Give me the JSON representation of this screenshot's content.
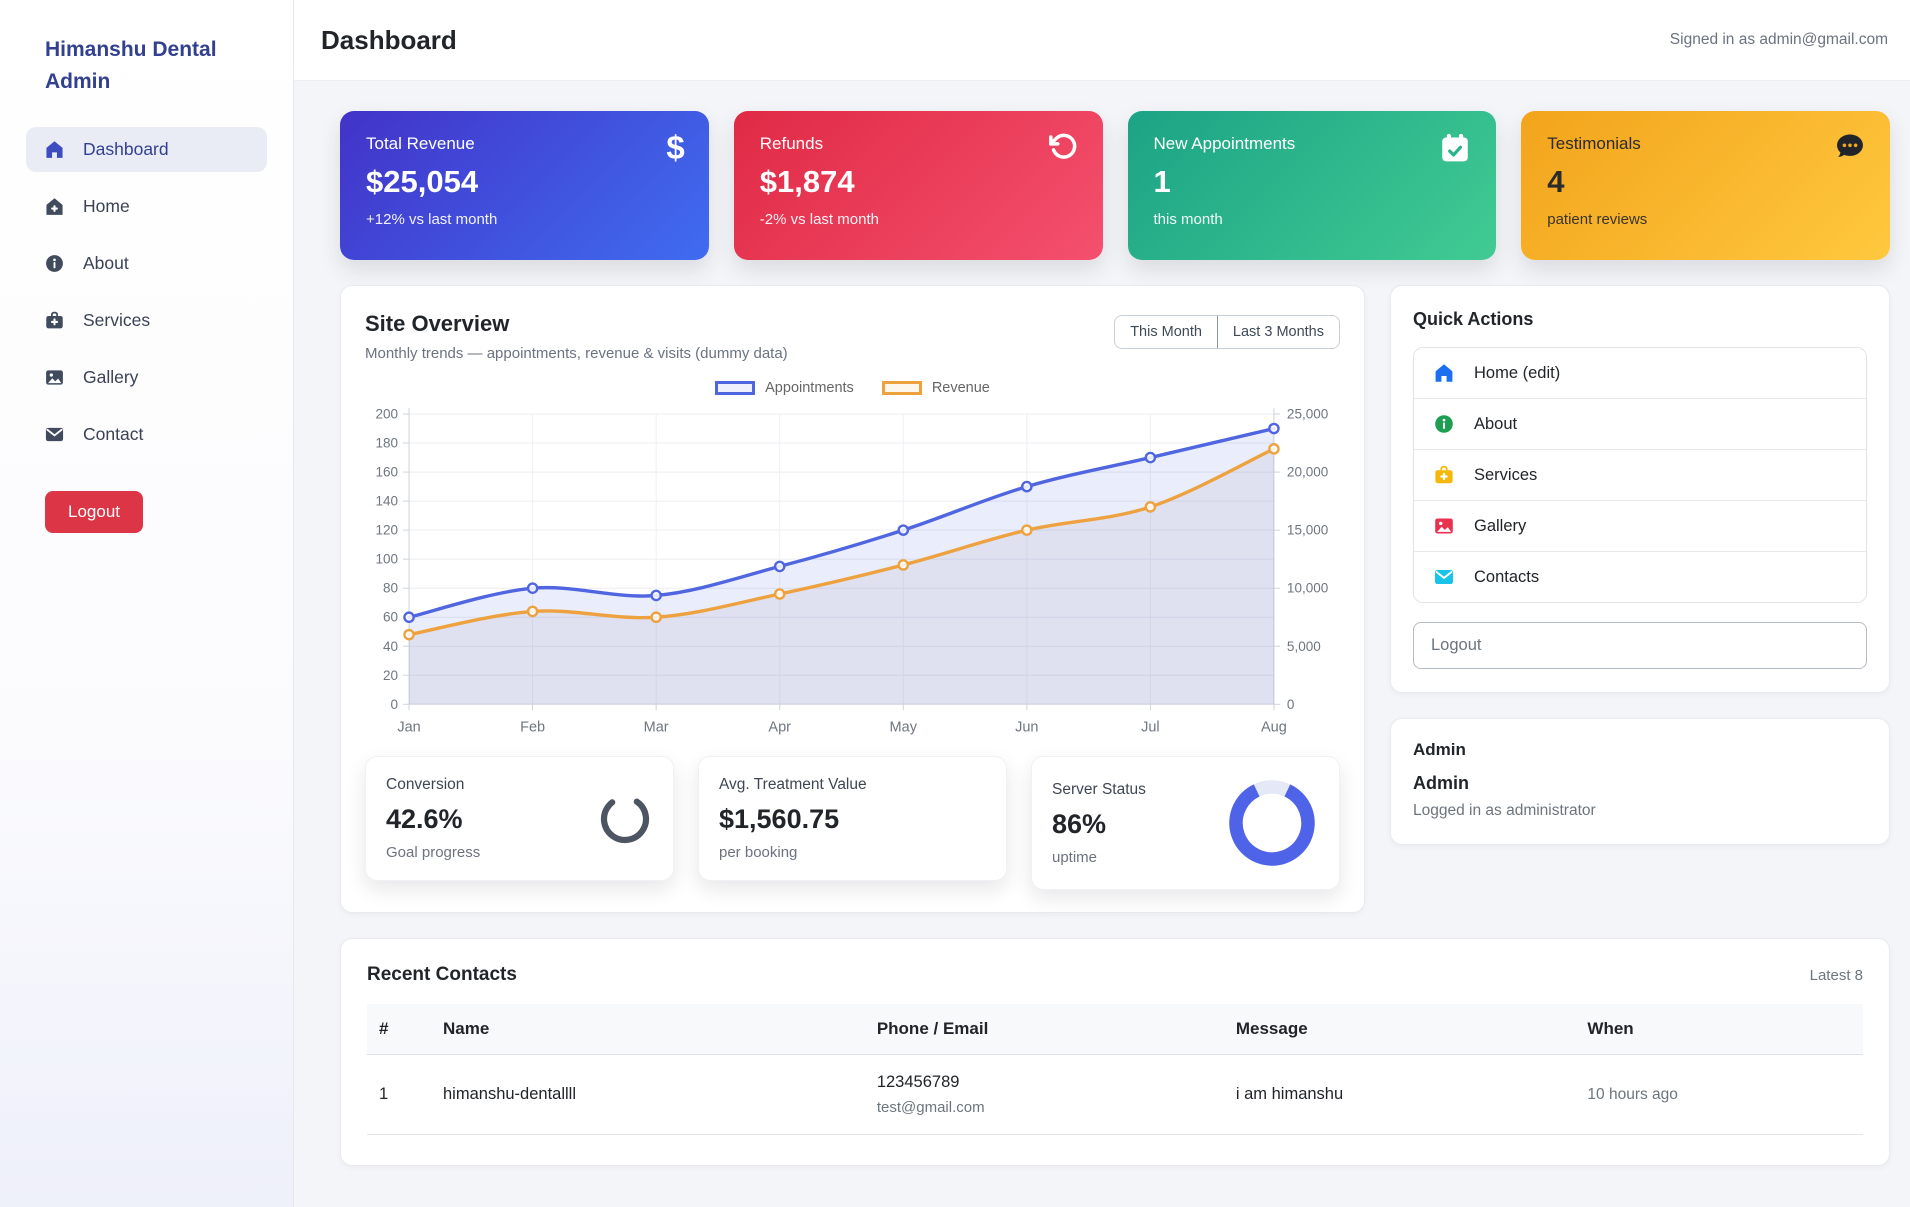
{
  "sidebar": {
    "brand": "Himanshu Dental Admin",
    "brand_color": "#32408f",
    "items": [
      {
        "label": "Dashboard",
        "icon": "home-icon",
        "active": true
      },
      {
        "label": "Home",
        "icon": "home-add-icon",
        "active": false
      },
      {
        "label": "About",
        "icon": "info-icon",
        "active": false
      },
      {
        "label": "Services",
        "icon": "medical-kit-icon",
        "active": false
      },
      {
        "label": "Gallery",
        "icon": "image-icon",
        "active": false
      },
      {
        "label": "Contact",
        "icon": "envelope-icon",
        "active": false
      }
    ],
    "logout_label": "Logout",
    "logout_color": "#dc3545"
  },
  "header": {
    "title": "Dashboard",
    "signed_in": "Signed in as admin@gmail.com"
  },
  "stat_cards": [
    {
      "label": "Total Revenue",
      "value": "$25,054",
      "sub": "+12% vs last month",
      "icon": "dollar-icon",
      "gradient": [
        "#4233c8",
        "#3f6cf0"
      ],
      "text_color": "#ffffff"
    },
    {
      "label": "Refunds",
      "value": "$1,874",
      "sub": "-2% vs last month",
      "icon": "rotate-ccw-icon",
      "gradient": [
        "#e02a45",
        "#f4506e"
      ],
      "text_color": "#ffffff"
    },
    {
      "label": "New Appointments",
      "value": "1",
      "sub": "this month",
      "icon": "calendar-check-icon",
      "gradient": [
        "#1ba385",
        "#41cb93"
      ],
      "text_color": "#ffffff"
    },
    {
      "label": "Testimonials",
      "value": "4",
      "sub": "patient reviews",
      "icon": "chat-dots-icon",
      "gradient": [
        "#f2a41c",
        "#ffc83e"
      ],
      "text_color": "#2b2b2b"
    }
  ],
  "site_overview": {
    "title": "Site Overview",
    "subtitle": "Monthly trends — appointments, revenue & visits (dummy data)",
    "toggles": [
      "This Month",
      "Last 3 Months"
    ]
  },
  "chart_data": {
    "type": "line",
    "x": [
      "Jan",
      "Feb",
      "Mar",
      "Apr",
      "May",
      "Jun",
      "Jul",
      "Aug"
    ],
    "series": [
      {
        "name": "Appointments",
        "axis": "left",
        "color": "#5066e0",
        "swatch_fill": "#eef1fd",
        "fill": "rgba(86,108,232,0.12)",
        "values": [
          60,
          80,
          75,
          95,
          120,
          150,
          170,
          190
        ]
      },
      {
        "name": "Revenue",
        "axis": "right",
        "color": "#eda23f",
        "swatch_fill": "#fdf6ea",
        "fill": "rgba(125,130,145,0.10)",
        "values": [
          6000,
          8000,
          7500,
          9500,
          12000,
          15000,
          17000,
          22000
        ]
      }
    ],
    "left_axis": {
      "min": 0,
      "max": 200,
      "step": 20
    },
    "right_axis": {
      "min": 0,
      "max": 25000,
      "step": 5000
    },
    "grid": true,
    "legend_position": "top"
  },
  "mini_cards": [
    {
      "title": "Conversion",
      "value": "42.6%",
      "sub": "Goal progress",
      "ring_percent": 80,
      "ring_color": "#4d5562"
    },
    {
      "title": "Avg. Treatment Value",
      "value": "$1,560.75",
      "sub": "per booking"
    },
    {
      "title": "Server Status",
      "value": "86%",
      "sub": "uptime",
      "ring_percent": 86,
      "ring_color": "#4f63e8",
      "track_color": "#e4e8f7"
    }
  ],
  "quick_actions": {
    "title": "Quick Actions",
    "items": [
      {
        "label": "Home (edit)",
        "icon": "home-icon",
        "icon_color": "#1d6ff2"
      },
      {
        "label": "About",
        "icon": "info-icon",
        "icon_color": "#1e9e53"
      },
      {
        "label": "Services",
        "icon": "medical-kit-icon",
        "icon_color": "#f5b70a"
      },
      {
        "label": "Gallery",
        "icon": "image-icon",
        "icon_color": "#e8324f"
      },
      {
        "label": "Contacts",
        "icon": "envelope-icon",
        "icon_color": "#17c3e8"
      }
    ],
    "logout_label": "Logout"
  },
  "admin_card": {
    "title": "Admin",
    "name": "Admin",
    "subtitle": "Logged in as administrator"
  },
  "recent_contacts": {
    "title": "Recent Contacts",
    "badge": "Latest 8",
    "columns": [
      "#",
      "Name",
      "Phone / Email",
      "Message",
      "When"
    ],
    "rows": [
      {
        "num": "1",
        "name": "himanshu-dentallll",
        "phone": "123456789",
        "email": "test@gmail.com",
        "message": "i am himanshu",
        "when": "10 hours ago"
      }
    ]
  }
}
